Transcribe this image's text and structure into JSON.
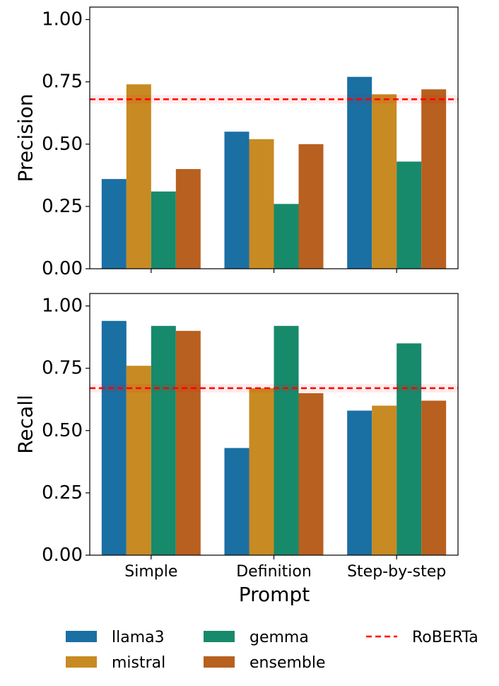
{
  "chart_data": {
    "type": "bar",
    "xlabel": "Prompt",
    "categories": [
      "Simple",
      "Definition",
      "Step-by-step"
    ],
    "series_names": [
      "llama3",
      "mistral",
      "gemma",
      "ensemble"
    ],
    "colors": {
      "llama3": "#1a6fa3",
      "mistral": "#c88a22",
      "gemma": "#178a6b",
      "ensemble": "#b8601f",
      "baseline": "#ff0000"
    },
    "baseline_label": "RoBERTa",
    "panels": [
      {
        "ylabel": "Precision",
        "ylim": [
          0,
          1.05
        ],
        "yticks": [
          "0.00",
          "0.25",
          "0.50",
          "0.75",
          "1.00"
        ],
        "baseline": 0.68,
        "series": [
          {
            "name": "llama3",
            "values": [
              0.36,
              0.55,
              0.77
            ]
          },
          {
            "name": "mistral",
            "values": [
              0.74,
              0.52,
              0.7
            ]
          },
          {
            "name": "gemma",
            "values": [
              0.31,
              0.26,
              0.43
            ]
          },
          {
            "name": "ensemble",
            "values": [
              0.4,
              0.5,
              0.72
            ]
          }
        ]
      },
      {
        "ylabel": "Recall",
        "ylim": [
          0,
          1.05
        ],
        "yticks": [
          "0.00",
          "0.25",
          "0.50",
          "0.75",
          "1.00"
        ],
        "baseline": 0.67,
        "series": [
          {
            "name": "llama3",
            "values": [
              0.94,
              0.43,
              0.58
            ]
          },
          {
            "name": "mistral",
            "values": [
              0.76,
              0.67,
              0.6
            ]
          },
          {
            "name": "gemma",
            "values": [
              0.92,
              0.92,
              0.85
            ]
          },
          {
            "name": "ensemble",
            "values": [
              0.9,
              0.65,
              0.62
            ]
          }
        ]
      }
    ]
  }
}
